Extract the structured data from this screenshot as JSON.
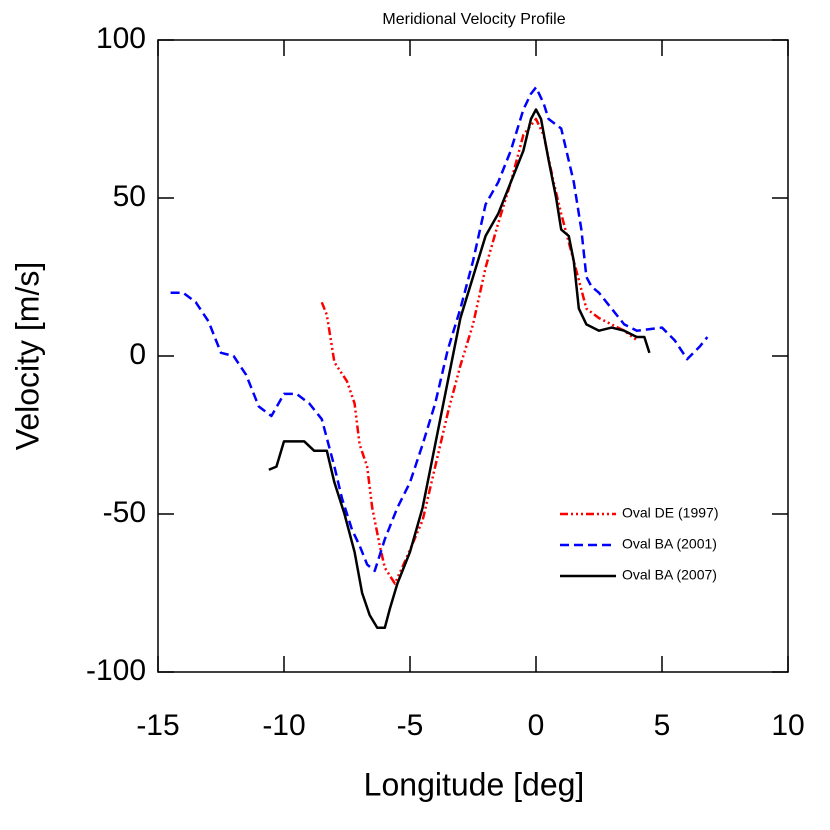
{
  "chart_data": {
    "type": "line",
    "title": "Meridional Velocity Profile",
    "xlabel": "Longitude [deg]",
    "ylabel": "Velocity [m/s]",
    "xlim": [
      -15,
      10
    ],
    "xticks": [
      -15,
      -10,
      -5,
      0,
      5,
      10
    ],
    "ylim": [
      -100,
      100
    ],
    "yticks": [
      -100,
      -50,
      0,
      50,
      100
    ],
    "legend": "lower right",
    "series": [
      {
        "name": "Oval DE (1997)",
        "color": "#ff0000",
        "linestyle": "dash-dot-dot-dot",
        "x": [
          -8.5,
          -8.3,
          -8,
          -7.5,
          -7.2,
          -7,
          -6.7,
          -6.5,
          -6.2,
          -6,
          -5.6,
          -5.2,
          -4.5,
          -4,
          -3.5,
          -3,
          -2.5,
          -2,
          -1.5,
          -1,
          -0.5,
          0,
          0.3,
          0.7,
          1,
          1.5,
          2,
          2.5,
          3,
          3.5,
          4
        ],
        "values": [
          17,
          13,
          -2,
          -8,
          -15,
          -28,
          -35,
          -48,
          -60,
          -67,
          -72,
          -65,
          -52,
          -35,
          -18,
          -3,
          10,
          28,
          42,
          55,
          70,
          75,
          70,
          55,
          45,
          30,
          15,
          12,
          10,
          8,
          5
        ]
      },
      {
        "name": "Oval BA (2001)",
        "color": "#0000ff",
        "linestyle": "dashed",
        "x": [
          -14.5,
          -14,
          -13.5,
          -13,
          -12.5,
          -12,
          -11.5,
          -11,
          -10.5,
          -10,
          -9.5,
          -9,
          -8.5,
          -8,
          -7.7,
          -7.3,
          -7,
          -6.7,
          -6.4,
          -6,
          -5.5,
          -5,
          -4.5,
          -4,
          -3.5,
          -3,
          -2.5,
          -2,
          -1.5,
          -1,
          -0.5,
          -0.2,
          0,
          0.3,
          0.5,
          1,
          1.5,
          1.8,
          2,
          2.2,
          2.5,
          3,
          3.5,
          4,
          5,
          5.5,
          6,
          6.5,
          6.8
        ],
        "values": [
          20,
          20,
          17,
          11,
          1,
          0,
          -6,
          -16,
          -19,
          -12,
          -12,
          -15,
          -20,
          -35,
          -45,
          -55,
          -60,
          -66,
          -68,
          -58,
          -48,
          -40,
          -28,
          -15,
          2,
          15,
          30,
          48,
          55,
          65,
          78,
          83,
          85,
          80,
          75,
          72,
          55,
          40,
          25,
          22,
          20,
          15,
          10,
          8,
          9,
          5,
          -1,
          3,
          6
        ]
      },
      {
        "name": "Oval BA (2007)",
        "color": "#000000",
        "linestyle": "solid",
        "x": [
          -10.6,
          -10.3,
          -10,
          -9.6,
          -9.2,
          -8.8,
          -8.3,
          -8,
          -7.6,
          -7.2,
          -6.9,
          -6.6,
          -6.3,
          -6,
          -5.8,
          -5.5,
          -5,
          -4.5,
          -4,
          -3.5,
          -3,
          -2.5,
          -2,
          -1.5,
          -1,
          -0.5,
          -0.2,
          0,
          0.2,
          0.5,
          0.8,
          1,
          1.3,
          1.5,
          1.7,
          2,
          2.5,
          3,
          3.5,
          4,
          4.3,
          4.5
        ],
        "values": [
          -36,
          -35,
          -27,
          -27,
          -27,
          -30,
          -30,
          -40,
          -50,
          -62,
          -75,
          -82,
          -86,
          -86,
          -80,
          -72,
          -62,
          -48,
          -28,
          -8,
          12,
          25,
          38,
          45,
          55,
          65,
          75,
          78,
          75,
          62,
          50,
          40,
          38,
          30,
          15,
          10,
          8,
          9,
          8,
          6,
          6,
          1
        ]
      }
    ]
  }
}
